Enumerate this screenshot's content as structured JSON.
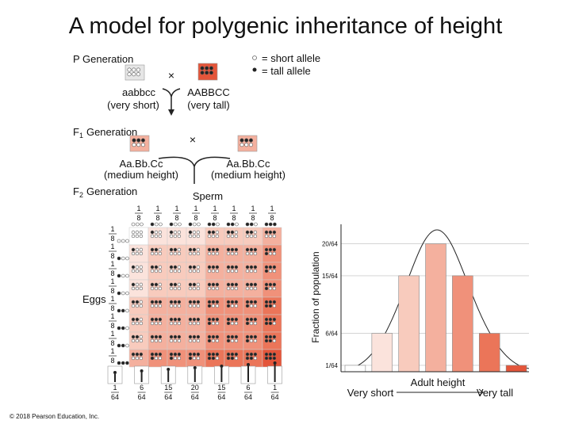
{
  "title": "A model for polygenic inheritance of height",
  "legend": {
    "short_allele": "= short allele",
    "tall_allele": "= tall allele"
  },
  "p_generation": {
    "label": "P Generation",
    "cross": "×",
    "parent_1": {
      "genotype": "aabbcc",
      "phenotype": "(very short)"
    },
    "parent_2": {
      "genotype": "AABBCC",
      "phenotype": "(very tall)"
    }
  },
  "f1_generation": {
    "label": "F",
    "subscript": "1",
    "label_rest": "Generation",
    "cross": "×",
    "parent_1": {
      "genotype": "Aa.Bb.Cc",
      "phenotype": "(medium height)"
    },
    "parent_2": {
      "genotype": "Aa.Bb.Cc",
      "phenotype": "(medium height)"
    }
  },
  "f2_generation": {
    "label": "F",
    "subscript": "2",
    "label_rest": "Generation",
    "sperm_label": "Sperm",
    "eggs_label": "Eggs",
    "sperm_fractions": [
      {
        "numerator": 1,
        "denominator": 8
      },
      {
        "numerator": 1,
        "denominator": 8
      },
      {
        "numerator": 1,
        "denominator": 8
      },
      {
        "numerator": 1,
        "denominator": 8
      },
      {
        "numerator": 1,
        "denominator": 8
      },
      {
        "numerator": 1,
        "denominator": 8
      },
      {
        "numerator": 1,
        "denominator": 8
      },
      {
        "numerator": 1,
        "denominator": 8
      }
    ],
    "egg_fractions": [
      {
        "numerator": 1,
        "denominator": 8
      },
      {
        "numerator": 1,
        "denominator": 8
      },
      {
        "numerator": 1,
        "denominator": 8
      },
      {
        "numerator": 1,
        "denominator": 8
      },
      {
        "numerator": 1,
        "denominator": 8
      },
      {
        "numerator": 1,
        "denominator": 8
      },
      {
        "numerator": 1,
        "denominator": 8
      },
      {
        "numerator": 1,
        "denominator": 8
      }
    ],
    "phenotype_fractions": [
      {
        "numerator": 1,
        "denominator": 64
      },
      {
        "numerator": 6,
        "denominator": 64
      },
      {
        "numerator": 15,
        "denominator": 64
      },
      {
        "numerator": 20,
        "denominator": 64
      },
      {
        "numerator": 15,
        "denominator": 64
      },
      {
        "numerator": 6,
        "denominator": 64
      },
      {
        "numerator": 1,
        "denominator": 64
      }
    ]
  },
  "chart_data": {
    "type": "bar",
    "y_label": "Fraction of population",
    "x_label": "Adult height",
    "x_start_label": "Very short",
    "x_end_label": "Very tall",
    "values": [
      0.015625,
      0.09375,
      0.234375,
      0.3125,
      0.234375,
      0.09375,
      0.015625
    ],
    "colors": [
      "#ffffff",
      "#fbe3dc",
      "#f8cbbd",
      "#f4b09e",
      "#f0917a",
      "#eb7559",
      "#e4553a"
    ],
    "ylim": [
      0,
      0.36
    ],
    "yticks": [
      {
        "value": 0.015625,
        "label": "1/64"
      },
      {
        "value": 0.09375,
        "label": "6/64"
      },
      {
        "value": 0.234375,
        "label": "15/64"
      },
      {
        "value": 0.3125,
        "label": "20/64"
      }
    ],
    "grid": true
  },
  "copyright": "© 2018 Pearson Education, Inc."
}
